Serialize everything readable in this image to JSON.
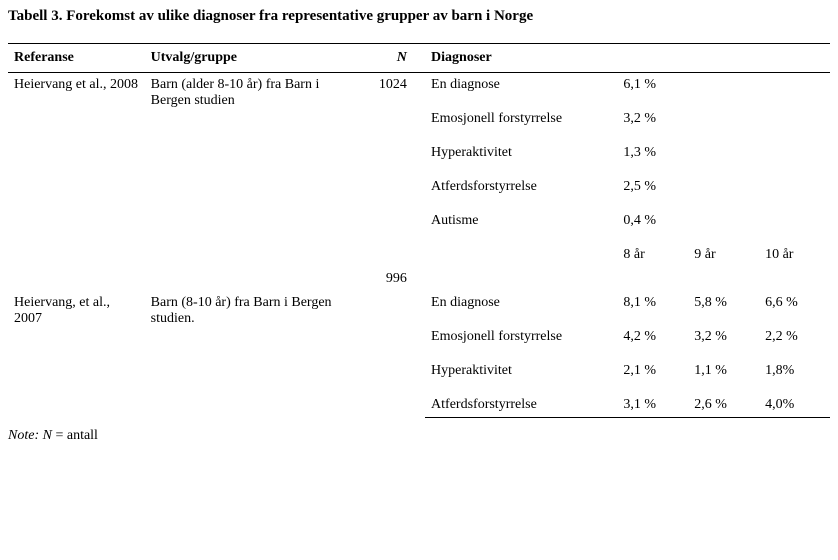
{
  "title": "Tabell 3.  Forekomst av ulike diagnoser fra representative grupper av barn i Norge",
  "headers": {
    "ref": "Referanse",
    "group": "Utvalg/gruppe",
    "n": "N",
    "diag": "Diagnoser"
  },
  "section1": {
    "ref": "Heiervang et al., 2008",
    "group": "Barn (alder 8-10 år) fra Barn i Bergen studien",
    "n": "1024",
    "rows": [
      {
        "label": "En diagnose",
        "v1": "6,1 %"
      },
      {
        "label": "Emosjonell forstyrrelse",
        "v1": "3,2 %"
      },
      {
        "label": "Hyperaktivitet",
        "v1": "1,3 %"
      },
      {
        "label": "Atferdsforstyrrelse",
        "v1": "2,5 %"
      },
      {
        "label": "Autisme",
        "v1": "0,4 %"
      }
    ]
  },
  "section2": {
    "ref": "Heiervang, et al., 2007",
    "group": "Barn (8-10 år)  fra Barn i Bergen studien.",
    "n": "996",
    "ageHeaders": {
      "a1": "8 år",
      "a2": "9 år",
      "a3": "10 år"
    },
    "rows": [
      {
        "label": "En diagnose",
        "v1": "8,1 %",
        "v2": "5,8 %",
        "v3": "6,6 %"
      },
      {
        "label": "Emosjonell forstyrrelse",
        "v1": "4,2 %",
        "v2": "3,2 %",
        "v3": "2,2 %"
      },
      {
        "label": "Hyperaktivitet",
        "v1": "2,1 %",
        "v2": "1,1 %",
        "v3": "1,8%"
      },
      {
        "label": "Atferdsforstyrrelse",
        "v1": "3,1 %",
        "v2": "2,6 %",
        "v3": "4,0%"
      }
    ]
  },
  "note": {
    "prefix": "Note: N",
    "rest": " = antall"
  }
}
